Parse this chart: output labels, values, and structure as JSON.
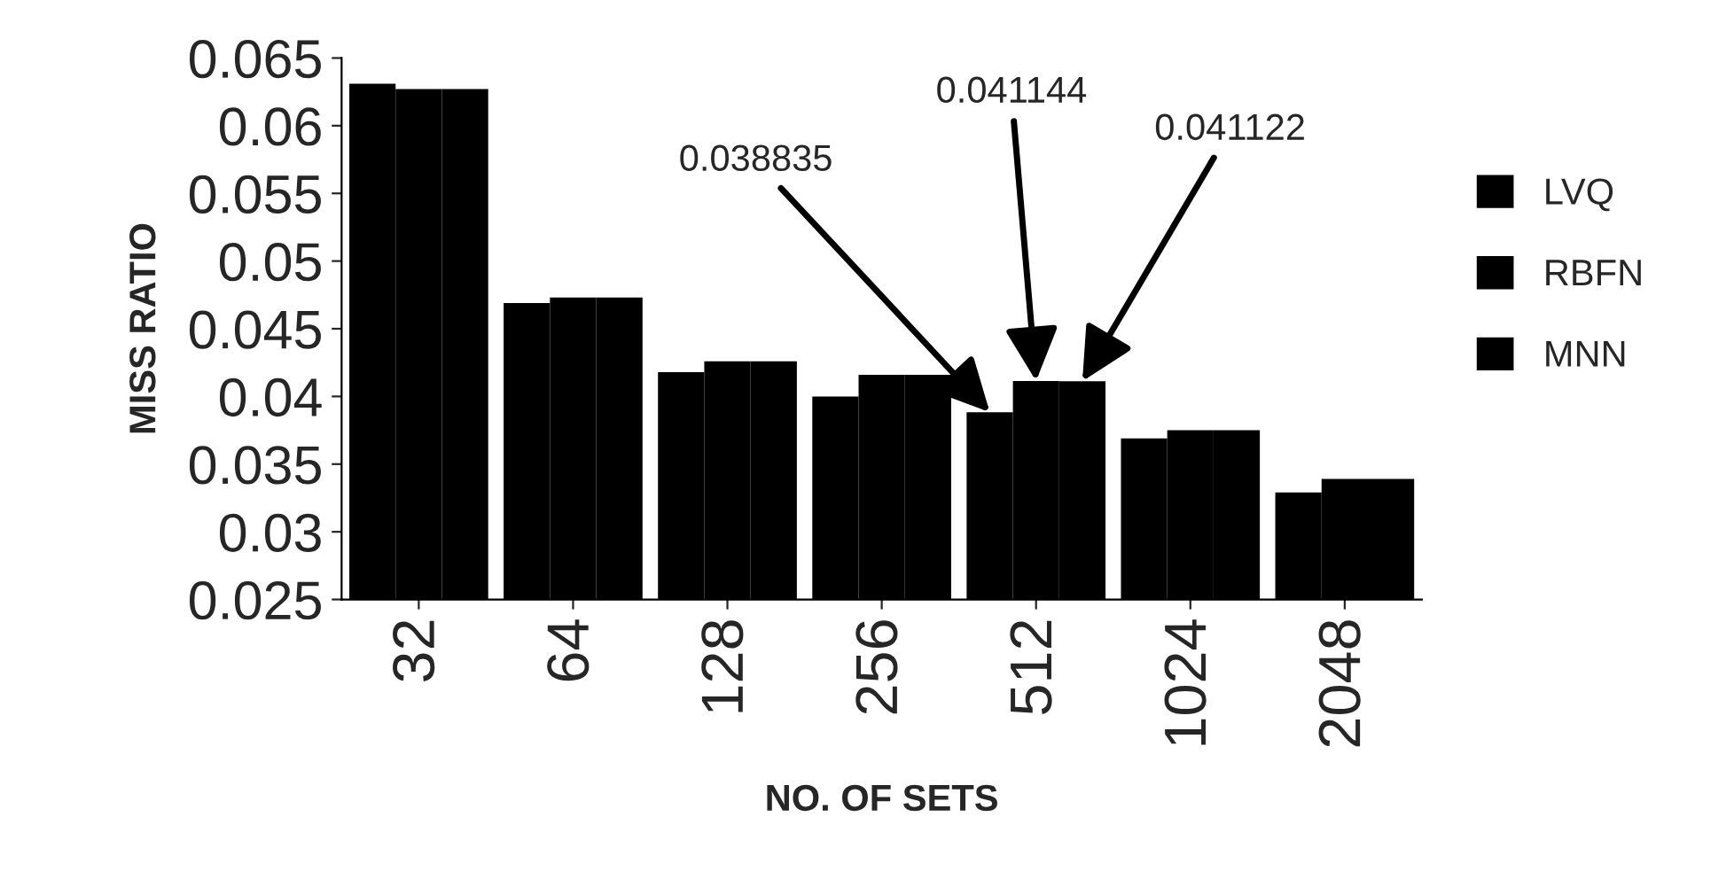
{
  "chart_data": {
    "type": "bar",
    "xlabel": "NO. OF SETS",
    "ylabel": "MISS RATIO",
    "categories": [
      "32",
      "64",
      "128",
      "256",
      "512",
      "1024",
      "2048"
    ],
    "series": [
      {
        "name": "LVQ",
        "color": "#000000",
        "values": [
          0.0631,
          0.0469,
          0.0418,
          0.04,
          0.038835,
          0.0369,
          0.0329
        ],
        "value_labels": [
          null,
          null,
          null,
          null,
          "0.038835",
          null,
          null
        ]
      },
      {
        "name": "RBFN",
        "color": "#000000",
        "values": [
          0.0627,
          0.0473,
          0.0426,
          0.0416,
          0.041144,
          0.0375,
          0.0339
        ],
        "value_labels": [
          null,
          null,
          null,
          null,
          "0.041144",
          null,
          null
        ]
      },
      {
        "name": "MNN",
        "color": "#000000",
        "values": [
          0.0627,
          0.0473,
          0.0426,
          0.0416,
          0.041122,
          0.0375,
          0.0339
        ],
        "value_labels": [
          null,
          null,
          null,
          null,
          "0.041122",
          null,
          null
        ]
      }
    ],
    "ylim": [
      0.025,
      0.065
    ],
    "yticks": [
      0.025,
      0.03,
      0.035,
      0.04,
      0.045,
      0.05,
      0.055,
      0.06,
      0.065
    ],
    "grid": false,
    "legend": "right"
  }
}
